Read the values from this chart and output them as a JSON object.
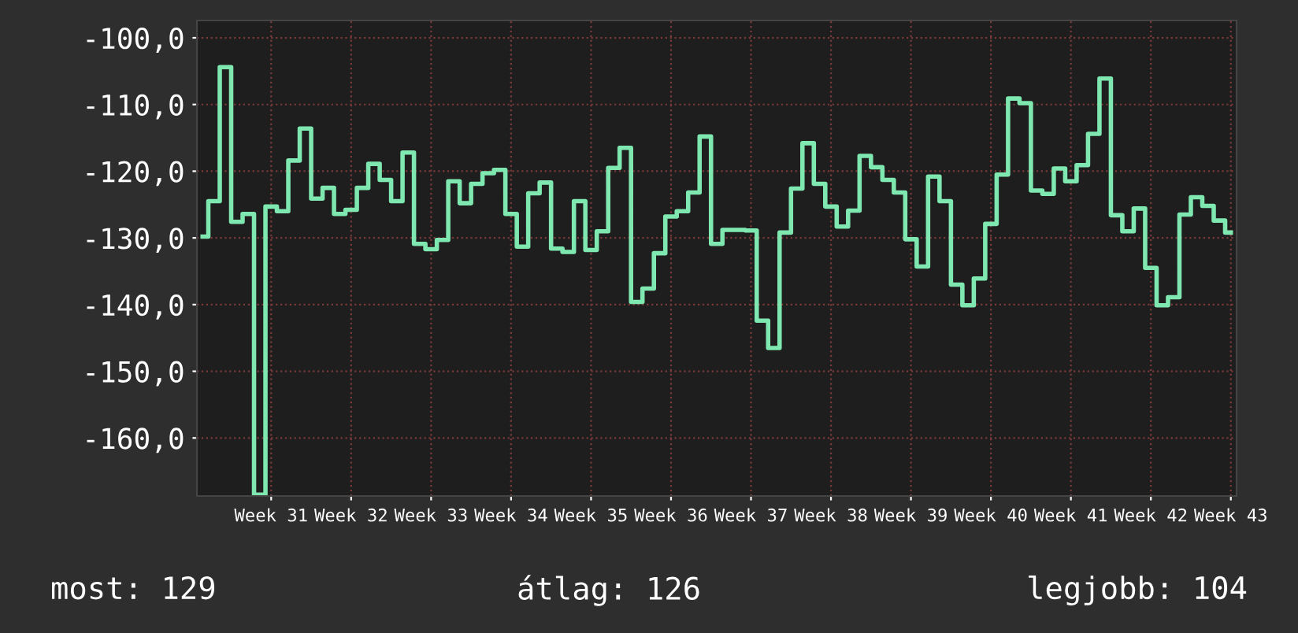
{
  "chart_data": {
    "type": "step",
    "categories": [
      null,
      null,
      null,
      null,
      null,
      null,
      "Week 31",
      null,
      null,
      null,
      null,
      null,
      null,
      "Week 32",
      null,
      null,
      null,
      null,
      null,
      null,
      "Week 33",
      null,
      null,
      null,
      null,
      null,
      null,
      "Week 34",
      null,
      null,
      null,
      null,
      null,
      null,
      "Week 35",
      null,
      null,
      null,
      null,
      null,
      null,
      "Week 36",
      null,
      null,
      null,
      null,
      null,
      null,
      "Week 37",
      null,
      null,
      null,
      null,
      null,
      null,
      "Week 38",
      null,
      null,
      null,
      null,
      null,
      null,
      "Week 39",
      null,
      null,
      null,
      null,
      null,
      null,
      "Week 40",
      null,
      null,
      null,
      null,
      null,
      null,
      "Week 41",
      null,
      null,
      null,
      null,
      null,
      null,
      "Week 42",
      null,
      null,
      null,
      null,
      null,
      null,
      "Week 43"
    ],
    "series": [
      {
        "color": "#7ee8b0",
        "values": [
          -129.8,
          -124.5,
          -104.4,
          -127.6,
          -126.4,
          -168.5,
          -125.3,
          -126.0,
          -118.4,
          -113.6,
          -124.1,
          -122.5,
          -126.4,
          -125.8,
          -122.5,
          -118.9,
          -121.3,
          -124.5,
          -117.2,
          -130.9,
          -131.7,
          -130.3,
          -121.5,
          -124.8,
          -121.9,
          -120.3,
          -119.8,
          -126.4,
          -131.3,
          -123.3,
          -121.7,
          -131.6,
          -132.1,
          -124.5,
          -131.8,
          -129.0,
          -119.5,
          -116.5,
          -139.6,
          -137.6,
          -132.3,
          -126.8,
          -126.0,
          -123.2,
          -114.8,
          -130.9,
          -128.8,
          -128.8,
          -128.9,
          -142.4,
          -146.5,
          -129.2,
          -122.6,
          -115.8,
          -121.9,
          -125.3,
          -128.3,
          -125.9,
          -117.7,
          -119.4,
          -121.3,
          -123.2,
          -130.2,
          -134.3,
          -120.8,
          -124.5,
          -137.0,
          -140.1,
          -136.1,
          -127.9,
          -120.5,
          -109.1,
          -109.8,
          -122.9,
          -123.4,
          -119.6,
          -121.5,
          -119.1,
          -114.4,
          -106.1,
          -126.6,
          -129.0,
          -125.6,
          -134.5,
          -140.1,
          -138.9,
          -126.5,
          -123.9,
          -125.2,
          -127.4,
          -129.2
        ]
      }
    ],
    "ylim": [
      -168.7,
      -97.4
    ],
    "yticks": [
      {
        "value": -160,
        "label": "-160,0"
      },
      {
        "value": -150,
        "label": "-150,0"
      },
      {
        "value": -140,
        "label": "-140,0"
      },
      {
        "value": -130,
        "label": "-130,0"
      },
      {
        "value": -120,
        "label": "-120,0"
      },
      {
        "value": -110,
        "label": "-110,0"
      },
      {
        "value": -100,
        "label": "-100,0"
      }
    ],
    "grid": true,
    "annotations": [
      "most: 129",
      "átlag: 126",
      "legjobb: 104"
    ]
  }
}
